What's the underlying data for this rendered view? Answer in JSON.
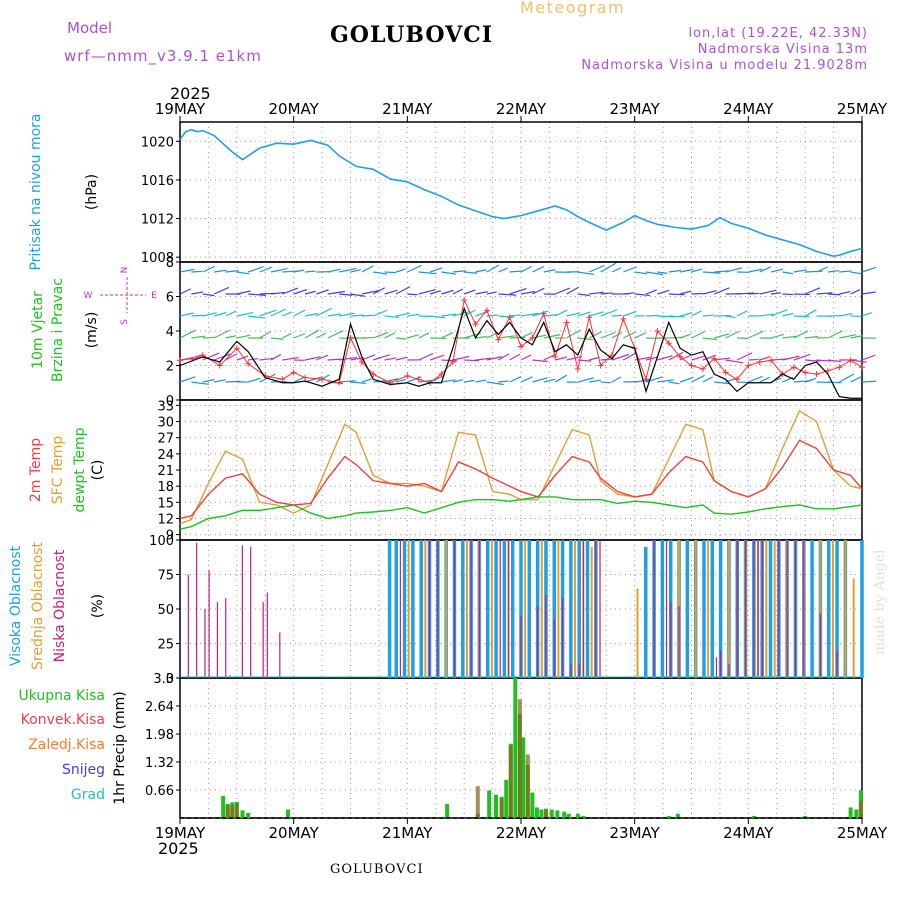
{
  "header": {
    "model_label": "Model",
    "model_name": "wrf—nmm_v3.9.1  e1km",
    "station": "GOLUBOVCI",
    "product": "Meteogram",
    "coords": "lon,lat (19.22E, 42.33N)",
    "elevation": "Nadmorska Visina 13m",
    "model_elevation": "Nadmorska Visina u modelu 21.9028m",
    "year_top": "2025",
    "year_bottom": "2025",
    "footer_station": "GOLUBOVCI",
    "credit": "made by Angel"
  },
  "colors": {
    "pressure": "#1ea0e6",
    "wind_magenta": "#c030c0",
    "wind_speed": "#000000",
    "gust": "#ff3030",
    "t2m": "#f04040",
    "sfc": "#e0a030",
    "dewp": "#20c020",
    "cloud_high": "#1ea0e6",
    "cloud_mid": "#e0a030",
    "cloud_low": "#c02080",
    "precip_total": "#20c020",
    "precip_conv": "#f04040",
    "precip_strat": "#f08030",
    "snow": "#4040e0",
    "hail": "#20c0c0"
  },
  "chart_data": [
    {
      "type": "line",
      "panel": "pressure",
      "ylabel_lines": [
        "Pritisak na nivou mora",
        "(hPa)"
      ],
      "ylim": [
        1007.5,
        1022
      ],
      "yticks": [
        "1008",
        "1012",
        "1016",
        "1020"
      ],
      "x_tick_labels": [
        "19MAY",
        "20MAY",
        "21MAY",
        "22MAY",
        "23MAY",
        "24MAY",
        "25MAY"
      ],
      "grid": true,
      "x_days": [
        0,
        0.05,
        0.1,
        0.15,
        0.2,
        0.3,
        0.45,
        0.55,
        0.7,
        0.85,
        1.0,
        1.15,
        1.3,
        1.4,
        1.55,
        1.7,
        1.85,
        2.0,
        2.15,
        2.3,
        2.45,
        2.6,
        2.75,
        2.85,
        3.0,
        3.15,
        3.3,
        3.4,
        3.5,
        3.6,
        3.75,
        3.9,
        4.0,
        4.1,
        4.2,
        4.35,
        4.5,
        4.65,
        4.75,
        4.85,
        5.0,
        5.15,
        5.3,
        5.45,
        5.6,
        5.75,
        5.8,
        5.9,
        6.0
      ],
      "series": [
        {
          "values": [
            1020.2,
            1021.0,
            1021.2,
            1021.0,
            1021.1,
            1020.6,
            1019.0,
            1018.1,
            1019.3,
            1019.8,
            1019.7,
            1020.1,
            1019.6,
            1018.5,
            1017.4,
            1017.1,
            1016.1,
            1015.8,
            1015.0,
            1014.3,
            1013.4,
            1012.8,
            1012.2,
            1012.0,
            1012.3,
            1012.8,
            1013.3,
            1012.9,
            1012.2,
            1011.6,
            1010.8,
            1011.6,
            1012.3,
            1011.8,
            1011.4,
            1011.1,
            1010.9,
            1011.3,
            1012.1,
            1011.5,
            1011.0,
            1010.3,
            1009.8,
            1009.3,
            1008.6,
            1008.1,
            1008.2,
            1008.6,
            1008.9
          ]
        }
      ]
    },
    {
      "type": "line",
      "panel": "wind",
      "ylabel_lines": [
        "10m Vjetar",
        "Brzina i Pravac",
        "(m/s)"
      ],
      "direction_legend": [
        "N",
        "W",
        "E",
        "S"
      ],
      "ylim": [
        0,
        8
      ],
      "yticks": [
        "0",
        "2",
        "4",
        "6",
        "8"
      ],
      "grid": true,
      "x_days": [
        0,
        0.2,
        0.35,
        0.5,
        0.6,
        0.75,
        0.9,
        1.0,
        1.1,
        1.25,
        1.4,
        1.5,
        1.6,
        1.7,
        1.85,
        2.0,
        2.1,
        2.2,
        2.3,
        2.4,
        2.5,
        2.6,
        2.7,
        2.8,
        2.9,
        3.0,
        3.1,
        3.2,
        3.3,
        3.4,
        3.5,
        3.6,
        3.7,
        3.8,
        3.9,
        4.0,
        4.1,
        4.2,
        4.3,
        4.4,
        4.5,
        4.6,
        4.7,
        4.8,
        4.9,
        5.0,
        5.1,
        5.2,
        5.3,
        5.4,
        5.5,
        5.6,
        5.7,
        5.8,
        5.9,
        6.0
      ],
      "series": [
        {
          "name": "speed",
          "values": [
            2.0,
            2.5,
            2.2,
            3.4,
            2.8,
            1.3,
            1.0,
            1.0,
            1.1,
            0.8,
            1.2,
            4.4,
            2.5,
            1.2,
            0.9,
            1.0,
            0.8,
            1.0,
            1.0,
            3.0,
            5.3,
            3.6,
            4.6,
            3.8,
            4.5,
            3.6,
            3.2,
            4.5,
            2.8,
            3.2,
            2.6,
            4.1,
            2.9,
            2.4,
            3.2,
            3.0,
            0.5,
            2.5,
            4.5,
            3.0,
            2.6,
            2.8,
            1.5,
            1.2,
            0.5,
            1.0,
            1.0,
            1.0,
            1.5,
            1.2,
            2.0,
            2.2,
            1.5,
            0.2,
            0.1,
            0.1
          ]
        },
        {
          "name": "gust",
          "values": [
            2.3,
            2.6,
            2.0,
            3.0,
            2.1,
            1.4,
            1.2,
            1.6,
            1.3,
            1.2,
            1.0,
            3.6,
            2.2,
            1.5,
            1.0,
            1.4,
            1.2,
            1.0,
            1.5,
            2.2,
            5.8,
            4.4,
            5.2,
            3.5,
            4.8,
            3.1,
            3.6,
            5.0,
            2.5,
            4.5,
            1.8,
            4.8,
            2.0,
            2.6,
            4.7,
            3.0,
            1.2,
            4.0,
            3.3,
            2.5,
            2.0,
            1.8,
            2.4,
            1.6,
            1.2,
            2.0,
            2.2,
            2.3,
            1.5,
            1.9,
            1.6,
            1.5,
            1.7,
            1.9,
            2.3,
            1.9
          ]
        }
      ]
    },
    {
      "type": "line",
      "panel": "temperature",
      "ylabel_lines": [
        "2m Temp",
        "SFC Temp",
        "dewpt Temp",
        "(C)"
      ],
      "ylim": [
        8,
        34
      ],
      "yticks": [
        "9",
        "12",
        "15",
        "18",
        "21",
        "24",
        "27",
        "30",
        "33"
      ],
      "grid": true,
      "x_days": [
        0,
        0.1,
        0.25,
        0.4,
        0.55,
        0.7,
        0.85,
        1.0,
        1.15,
        1.3,
        1.45,
        1.55,
        1.7,
        1.85,
        2.0,
        2.15,
        2.3,
        2.45,
        2.6,
        2.75,
        2.9,
        3.0,
        3.15,
        3.3,
        3.45,
        3.6,
        3.7,
        3.85,
        4.0,
        4.15,
        4.3,
        4.45,
        4.6,
        4.7,
        4.85,
        5.0,
        5.15,
        5.3,
        5.45,
        5.6,
        5.75,
        5.9,
        6.0
      ],
      "series": [
        {
          "name": "2m Temp",
          "values": [
            12.0,
            12.5,
            16.5,
            19.5,
            20.3,
            16.5,
            15.0,
            14.5,
            14.8,
            19.5,
            23.5,
            22.0,
            19.0,
            18.5,
            18.0,
            18.5,
            17.0,
            22.5,
            21.2,
            19.5,
            18.0,
            17.0,
            16.0,
            20.0,
            23.5,
            22.5,
            19.5,
            17.0,
            16.0,
            16.5,
            20.5,
            23.5,
            22.5,
            19.0,
            17.0,
            16.0,
            17.5,
            21.5,
            26.5,
            25.0,
            21.0,
            20.0,
            17.5
          ]
        },
        {
          "name": "SFC Temp",
          "values": [
            11.0,
            11.8,
            18.5,
            24.5,
            23.0,
            15.0,
            14.5,
            13.0,
            14.5,
            22.0,
            29.5,
            28.0,
            20.0,
            18.5,
            18.5,
            18.0,
            17.0,
            28.0,
            27.5,
            17.0,
            16.5,
            15.5,
            15.5,
            22.0,
            28.5,
            27.5,
            19.0,
            16.5,
            16.0,
            16.5,
            23.0,
            29.5,
            28.5,
            19.0,
            17.0,
            16.0,
            17.5,
            25.0,
            32.0,
            30.0,
            21.0,
            18.0,
            17.5
          ]
        },
        {
          "name": "dewpt Temp",
          "values": [
            10.0,
            10.5,
            12.0,
            12.5,
            13.5,
            13.5,
            14.0,
            14.5,
            13.0,
            12.0,
            12.5,
            13.0,
            13.2,
            13.5,
            14.0,
            13.0,
            14.0,
            15.0,
            15.5,
            15.5,
            15.2,
            15.5,
            16.0,
            16.0,
            15.5,
            15.5,
            15.5,
            14.8,
            15.2,
            15.0,
            14.5,
            14.0,
            14.5,
            13.0,
            12.8,
            13.2,
            13.8,
            14.2,
            14.5,
            13.8,
            13.8,
            14.2,
            14.5
          ]
        }
      ]
    },
    {
      "type": "bar",
      "panel": "clouds",
      "ylabel_lines": [
        "Visoka Oblacnost",
        "Srednja Oblacnost",
        "Niska Oblacnost",
        "(%)"
      ],
      "ylim": [
        0,
        100
      ],
      "yticks": [
        "0",
        "25",
        "50",
        "75",
        "100"
      ],
      "grid": true,
      "series": [
        {
          "name": "Visoka Oblacnost",
          "x_days": [
            2.0,
            2.52,
            2.6,
            2.7,
            2.8,
            2.9,
            3.0,
            3.1,
            3.2,
            3.3,
            3.4,
            3.5,
            3.6,
            3.7,
            3.8,
            3.9,
            4.0,
            4.1,
            4.2,
            4.3,
            4.4,
            4.5,
            4.6,
            4.7,
            4.8,
            4.9,
            5.0,
            5.6,
            5.7,
            5.8,
            5.9,
            6.0,
            6.1,
            6.2,
            6.3,
            6.4,
            6.5,
            6.6,
            6.7,
            6.8,
            6.9,
            7.0,
            7.1,
            7.2,
            7.3,
            7.4,
            7.5,
            7.6,
            7.7,
            7.8,
            7.9,
            8.0,
            8.2
          ],
          "values": [
            0,
            100,
            100,
            100,
            100,
            100,
            100,
            100,
            100,
            100,
            100,
            100,
            100,
            100,
            100,
            100,
            100,
            100,
            100,
            100,
            100,
            100,
            100,
            100,
            100,
            100,
            100,
            95,
            100,
            100,
            100,
            100,
            100,
            100,
            100,
            100,
            100,
            100,
            100,
            100,
            100,
            100,
            100,
            100,
            100,
            100,
            100,
            100,
            100,
            100,
            100,
            100,
            100
          ]
        },
        {
          "name": "Srednja Oblacnost",
          "x_days": [
            2.75,
            2.95,
            3.2,
            3.45,
            3.6,
            3.75,
            3.95,
            4.15,
            4.35,
            4.55,
            4.75,
            4.85,
            4.95,
            5.5,
            6.0,
            6.2,
            6.35,
            6.6,
            6.8,
            6.95,
            7.05,
            7.15,
            7.3,
            7.5,
            7.7,
            7.85,
            8.0,
            8.1
          ],
          "values": [
            100,
            100,
            100,
            100,
            100,
            100,
            100,
            100,
            100,
            100,
            100,
            100,
            95,
            65,
            100,
            100,
            100,
            100,
            100,
            100,
            100,
            100,
            100,
            100,
            100,
            100,
            100,
            72
          ]
        },
        {
          "name": "Niska Oblacnost",
          "x_days": [
            0.1,
            0.2,
            0.3,
            0.35,
            0.45,
            0.55,
            0.6,
            0.75,
            0.85,
            1.0,
            1.05,
            1.2,
            1.25,
            1.35,
            1.6,
            2.65,
            3.0,
            3.1,
            3.3,
            3.5,
            3.6,
            3.85,
            3.95,
            4.1,
            4.3,
            4.4,
            4.5,
            4.6,
            4.7,
            4.8,
            4.85,
            5.0,
            5.05,
            5.3,
            5.45,
            5.55,
            5.7,
            5.85,
            5.9,
            6.0,
            6.05,
            6.1,
            6.2,
            6.45,
            6.5,
            6.6,
            6.7,
            6.8,
            6.9,
            6.95,
            7.0,
            7.2,
            7.3,
            7.4,
            7.5,
            7.7,
            7.9,
            8.0
          ],
          "values": [
            75,
            98,
            50,
            78,
            55,
            58,
            2,
            96,
            95,
            55,
            62,
            33,
            0,
            0,
            0,
            100,
            100,
            100,
            100,
            100,
            100,
            100,
            100,
            45,
            52,
            60,
            43,
            58,
            10,
            10,
            100,
            100,
            100,
            0,
            0,
            0,
            100,
            100,
            55,
            52,
            0,
            0,
            0,
            15,
            20,
            10,
            100,
            100,
            100,
            100,
            100,
            100,
            100,
            100,
            100,
            47,
            20,
            0
          ]
        }
      ]
    },
    {
      "type": "bar",
      "panel": "precip",
      "ylabel_lines": [
        "1hr Precip (mm)"
      ],
      "legend": [
        "Ukupna Kisa",
        "Konvek.Kisa",
        "Zaledj.Kisa",
        "Snijeg",
        "Grad"
      ],
      "ylim": [
        0,
        3.3
      ],
      "yticks": [
        "0.66",
        "1.32",
        "1.98",
        "2.64",
        "3.3"
      ],
      "x_tick_labels": [
        "19MAY",
        "20MAY",
        "21MAY",
        "22MAY",
        "23MAY",
        "24MAY",
        "25MAY"
      ],
      "grid": true,
      "series": [
        {
          "name": "Ukupna Kisa",
          "x_days": [
            0.38,
            0.42,
            0.46,
            0.5,
            0.55,
            0.6,
            0.95,
            2.35,
            2.62,
            2.72,
            2.78,
            2.83,
            2.87,
            2.91,
            2.95,
            2.99,
            3.02,
            3.06,
            3.1,
            3.14,
            3.18,
            3.22,
            3.27,
            3.32,
            3.38,
            3.42,
            3.5,
            3.55,
            4.3,
            4.38,
            5.05,
            5.5,
            5.9,
            5.95,
            5.99
          ],
          "values": [
            0.52,
            0.33,
            0.37,
            0.38,
            0.18,
            0.12,
            0.2,
            0.33,
            0.1,
            0.65,
            0.55,
            0.5,
            0.9,
            1.75,
            3.3,
            2.45,
            1.9,
            1.25,
            0.6,
            0.25,
            0.2,
            0.22,
            0.2,
            0.18,
            0.15,
            0.1,
            0.1,
            0.05,
            0.05,
            0.1,
            0.05,
            0.05,
            0.25,
            0.2,
            0.65
          ]
        },
        {
          "name": "Konvek.Kisa",
          "x_days": [
            0.42,
            0.46,
            0.5,
            2.62,
            2.83,
            2.91,
            2.99,
            3.06,
            3.22,
            5.99
          ],
          "values": [
            0.3,
            0.3,
            0.35,
            0.75,
            0.45,
            1.7,
            2.8,
            1.5,
            0.2,
            0.4
          ]
        }
      ]
    }
  ]
}
